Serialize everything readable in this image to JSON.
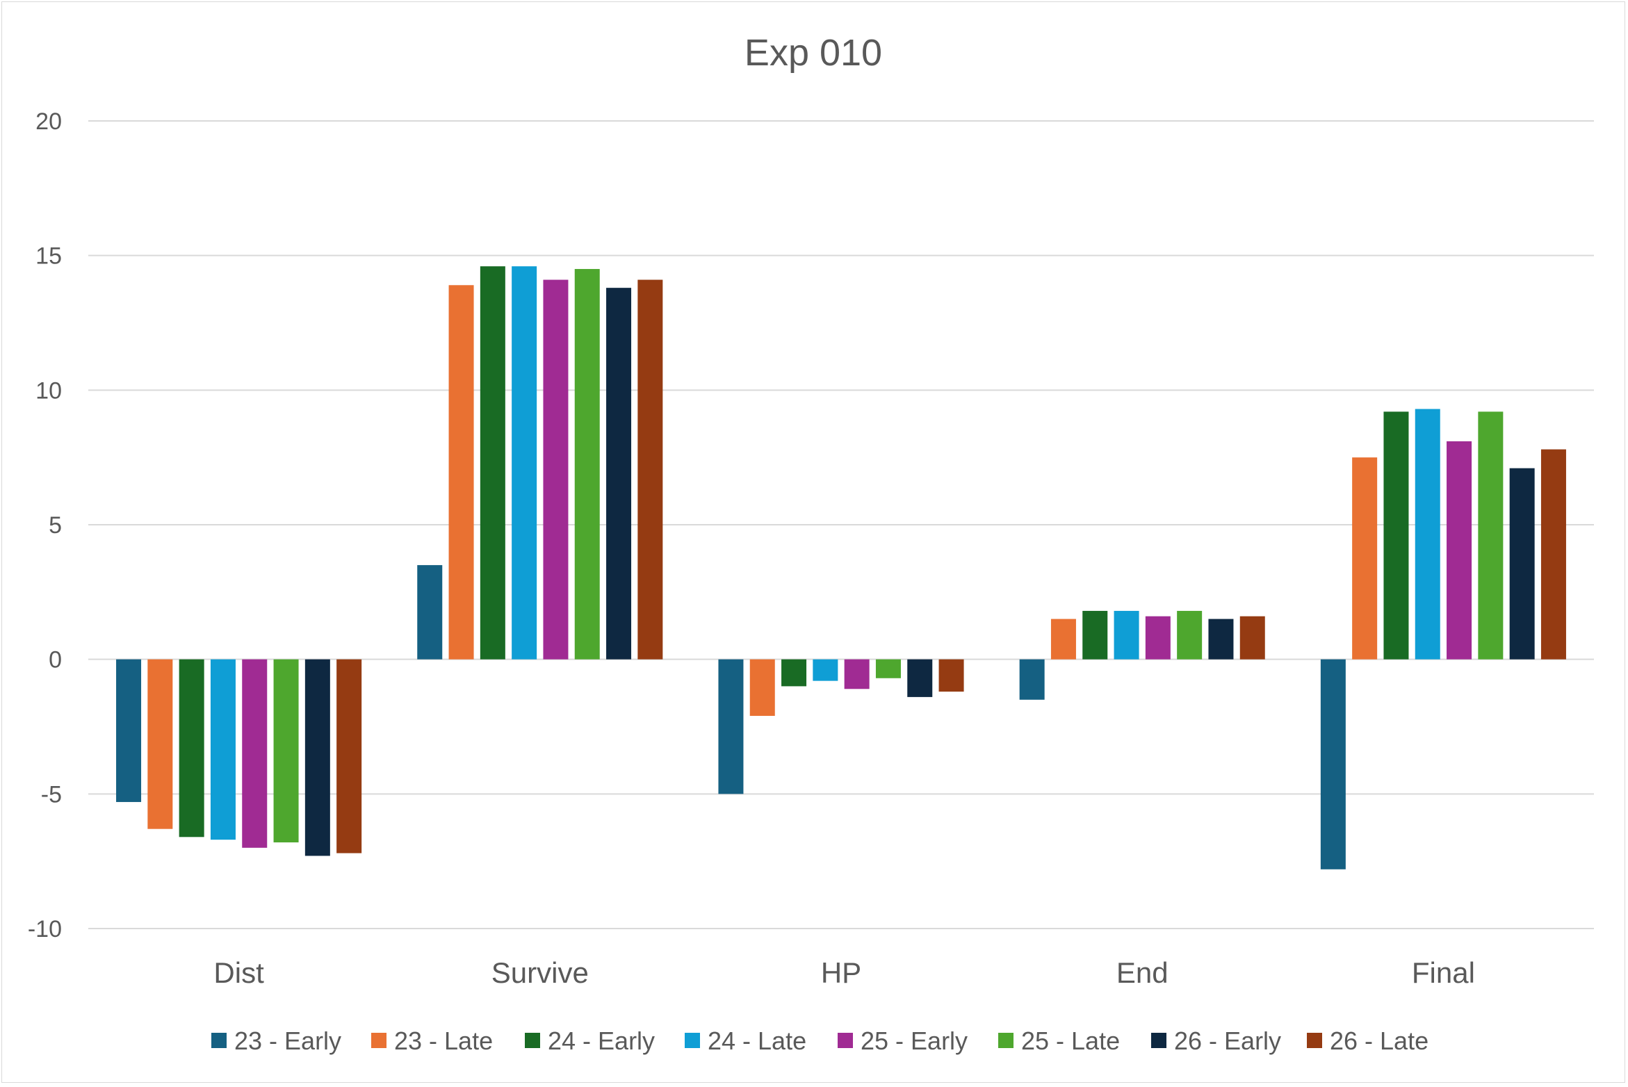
{
  "chart_data": {
    "type": "bar",
    "title": "Exp 010",
    "xlabel": "",
    "ylabel": "",
    "ylim": [
      -10,
      20
    ],
    "yticks": [
      20,
      15,
      10,
      5,
      0,
      -5,
      -10
    ],
    "grid": true,
    "legend_position": "bottom",
    "categories": [
      "Dist",
      "Survive",
      "HP",
      "End",
      "Final"
    ],
    "series": [
      {
        "name": "23 - Early",
        "color": "#156082",
        "values": [
          -5.3,
          3.5,
          -5.0,
          -1.5,
          -7.8
        ]
      },
      {
        "name": "23 - Late",
        "color": "#E97132",
        "values": [
          -6.3,
          13.9,
          -2.1,
          1.5,
          7.5
        ]
      },
      {
        "name": "24 - Early",
        "color": "#196B24",
        "values": [
          -6.6,
          14.6,
          -1.0,
          1.8,
          9.2
        ]
      },
      {
        "name": "24 - Late",
        "color": "#0F9ED5",
        "values": [
          -6.7,
          14.6,
          -0.8,
          1.8,
          9.3
        ]
      },
      {
        "name": "25 - Early",
        "color": "#A02B93",
        "values": [
          -7.0,
          14.1,
          -1.1,
          1.6,
          8.1
        ]
      },
      {
        "name": "25 - Late",
        "color": "#4EA72E",
        "values": [
          -6.8,
          14.5,
          -0.7,
          1.8,
          9.2
        ]
      },
      {
        "name": "26 - Early",
        "color": "#0E2841",
        "values": [
          -7.3,
          13.8,
          -1.4,
          1.5,
          7.1
        ]
      },
      {
        "name": "26 - Late",
        "color": "#953B12",
        "values": [
          -7.2,
          14.1,
          -1.2,
          1.6,
          7.8
        ]
      }
    ]
  }
}
